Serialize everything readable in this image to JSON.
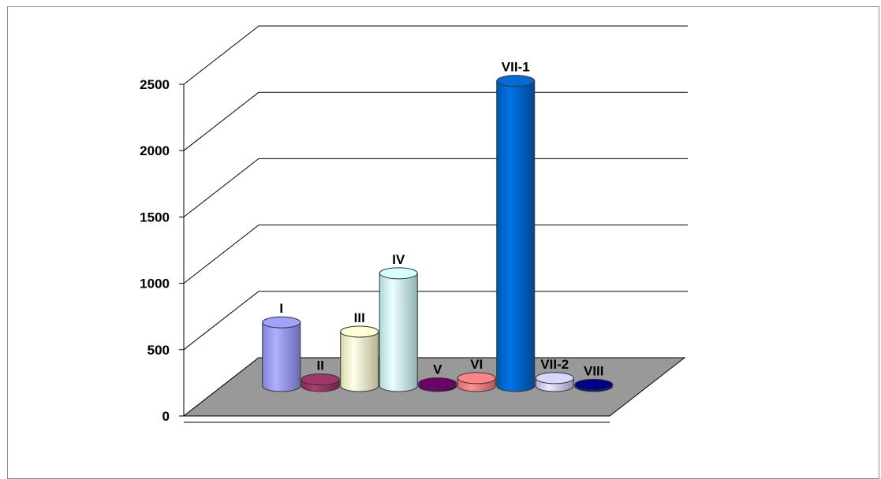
{
  "chart_data": {
    "type": "bar",
    "style": "3d-cylinder",
    "title": "",
    "xlabel": "",
    "ylabel": "",
    "ylim": [
      0,
      2500
    ],
    "yticks": [
      "0",
      "500",
      "1000",
      "1500",
      "2000",
      "2500"
    ],
    "grid": true,
    "floor_color": "#999999",
    "categories": [
      "I",
      "II",
      "III",
      "IV",
      "V",
      "VI",
      "VII-1",
      "VII-2",
      "VIII"
    ],
    "values": [
      480,
      50,
      410,
      850,
      20,
      60,
      2300,
      60,
      10
    ],
    "colors": [
      "#9999ff",
      "#993366",
      "#ffffcc",
      "#ccffff",
      "#660066",
      "#ff8080",
      "#0066cc",
      "#ccccff",
      "#000080"
    ],
    "data_labels": [
      "I",
      "II",
      "III",
      "IV",
      "V",
      "VI",
      "VII-1",
      "VII-2",
      "VIII"
    ]
  }
}
